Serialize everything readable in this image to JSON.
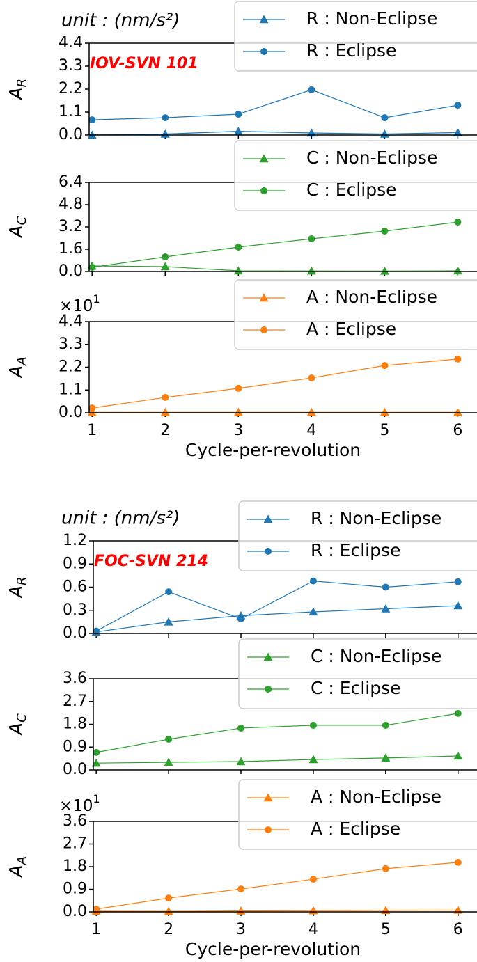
{
  "chart_data": [
    {
      "type": "line",
      "annotation": "unit : (nm/s²)",
      "label": "IOV-SVN 101",
      "x": [
        1,
        2,
        3,
        4,
        5,
        6
      ],
      "xlim": [
        0.96,
        6.31
      ],
      "xticks": [
        1,
        2,
        3,
        4,
        5,
        6
      ],
      "xticklabels": false,
      "ylim": [
        0,
        4.4
      ],
      "yticks": [
        {
          "value": 0,
          "label": "0.0"
        },
        1.1,
        2.2,
        3.3,
        4.4
      ],
      "ylabel": {
        "text": "A",
        "subscript": "R"
      },
      "legend": "upper right",
      "series": [
        {
          "name": "R : Non-Eclipse",
          "color": "#1f77b4",
          "marker": "triangle",
          "values": [
            0.0,
            0.05,
            0.18,
            0.1,
            0.05,
            0.12
          ]
        },
        {
          "name": "R : Eclipse",
          "color": "#1f77b4",
          "marker": "circle",
          "values": [
            0.73,
            0.83,
            1.0,
            2.17,
            0.83,
            1.43
          ]
        }
      ]
    },
    {
      "type": "line",
      "x": [
        1,
        2,
        3,
        4,
        5,
        6
      ],
      "xlim": [
        0.96,
        6.31
      ],
      "xticks": [
        1,
        2,
        3,
        4,
        5,
        6
      ],
      "xticklabels": false,
      "ylim": [
        0,
        6.4
      ],
      "yticks": [
        {
          "value": 0,
          "label": "0.0"
        },
        1.6,
        3.2,
        4.8,
        6.4
      ],
      "ylabel": {
        "text": "A",
        "subscript": "C"
      },
      "legend": "upper right",
      "series": [
        {
          "name": "C : Non-Eclipse",
          "color": "#2ca02c",
          "marker": "triangle",
          "values": [
            0.4,
            0.35,
            0.05,
            0.04,
            0.03,
            0.05
          ]
        },
        {
          "name": "C : Eclipse",
          "color": "#2ca02c",
          "marker": "circle",
          "values": [
            0.3,
            1.05,
            1.75,
            2.35,
            2.9,
            3.55
          ]
        }
      ]
    },
    {
      "type": "line",
      "multiplier": {
        "text": "×10",
        "exponent": "1"
      },
      "xlabel": "Cycle-per-revolution",
      "x": [
        1,
        2,
        3,
        4,
        5,
        6
      ],
      "xlim": [
        0.96,
        6.31
      ],
      "xticks": [
        1,
        2,
        3,
        4,
        5,
        6
      ],
      "xticklabels": true,
      "ylim": [
        0,
        4.4
      ],
      "yticks": [
        {
          "value": 0,
          "label": "0.0"
        },
        1.1,
        2.2,
        3.3,
        4.4
      ],
      "ylabel": {
        "text": "A",
        "subscript": "A"
      },
      "legend": "upper right",
      "series": [
        {
          "name": "A : Non-Eclipse",
          "color": "#ff7f0e",
          "marker": "triangle",
          "values": [
            0.02,
            0.02,
            0.02,
            0.02,
            0.02,
            0.02
          ]
        },
        {
          "name": "A : Eclipse",
          "color": "#ff7f0e",
          "marker": "circle",
          "values": [
            0.23,
            0.74,
            1.18,
            1.68,
            2.28,
            2.59
          ]
        }
      ]
    },
    {
      "type": "line",
      "annotation": "unit : (nm/s²)",
      "label": "FOC-SVN 214",
      "x": [
        1,
        2,
        3,
        4,
        5,
        6
      ],
      "xlim": [
        0.96,
        6.31
      ],
      "xticks": [
        1,
        2,
        3,
        4,
        5,
        6
      ],
      "xticklabels": false,
      "ylim": [
        0,
        1.2
      ],
      "yticks": [
        {
          "value": 0,
          "label": "0.0"
        },
        0.3,
        0.6,
        0.9,
        1.2
      ],
      "ylabel": {
        "text": "A",
        "subscript": "R"
      },
      "legend": "upper right",
      "series": [
        {
          "name": "R : Non-Eclipse",
          "color": "#1f77b4",
          "marker": "triangle",
          "values": [
            0.02,
            0.15,
            0.23,
            0.28,
            0.32,
            0.36
          ]
        },
        {
          "name": "R : Eclipse",
          "color": "#1f77b4",
          "marker": "circle",
          "values": [
            0.03,
            0.54,
            0.19,
            0.68,
            0.6,
            0.67
          ]
        }
      ]
    },
    {
      "type": "line",
      "x": [
        1,
        2,
        3,
        4,
        5,
        6
      ],
      "xlim": [
        0.96,
        6.31
      ],
      "xticks": [
        1,
        2,
        3,
        4,
        5,
        6
      ],
      "xticklabels": false,
      "ylim": [
        0,
        3.6
      ],
      "yticks": [
        {
          "value": 0,
          "label": "0.0"
        },
        0.9,
        1.8,
        2.7,
        3.6
      ],
      "ylabel": {
        "text": "A",
        "subscript": "C"
      },
      "legend": "upper right",
      "series": [
        {
          "name": "C : Non-Eclipse",
          "color": "#2ca02c",
          "marker": "triangle",
          "values": [
            0.27,
            0.3,
            0.33,
            0.41,
            0.47,
            0.55
          ]
        },
        {
          "name": "C : Eclipse",
          "color": "#2ca02c",
          "marker": "circle",
          "values": [
            0.69,
            1.21,
            1.65,
            1.76,
            1.76,
            2.23
          ]
        }
      ]
    },
    {
      "type": "line",
      "multiplier": {
        "text": "×10",
        "exponent": "1"
      },
      "xlabel": "Cycle-per-revolution",
      "x": [
        1,
        2,
        3,
        4,
        5,
        6
      ],
      "xlim": [
        0.96,
        6.31
      ],
      "xticks": [
        1,
        2,
        3,
        4,
        5,
        6
      ],
      "xticklabels": true,
      "ylim": [
        0,
        3.6
      ],
      "yticks": [
        {
          "value": 0,
          "label": "0.0"
        },
        0.9,
        1.8,
        2.7,
        3.6
      ],
      "ylabel": {
        "text": "A",
        "subscript": "A"
      },
      "legend": "upper right",
      "series": [
        {
          "name": "A : Non-Eclipse",
          "color": "#ff7f0e",
          "marker": "triangle",
          "values": [
            0.03,
            0.02,
            0.04,
            0.05,
            0.06,
            0.07
          ]
        },
        {
          "name": "A : Eclipse",
          "color": "#ff7f0e",
          "marker": "circle",
          "values": [
            0.11,
            0.55,
            0.91,
            1.3,
            1.72,
            1.97
          ]
        }
      ]
    }
  ]
}
